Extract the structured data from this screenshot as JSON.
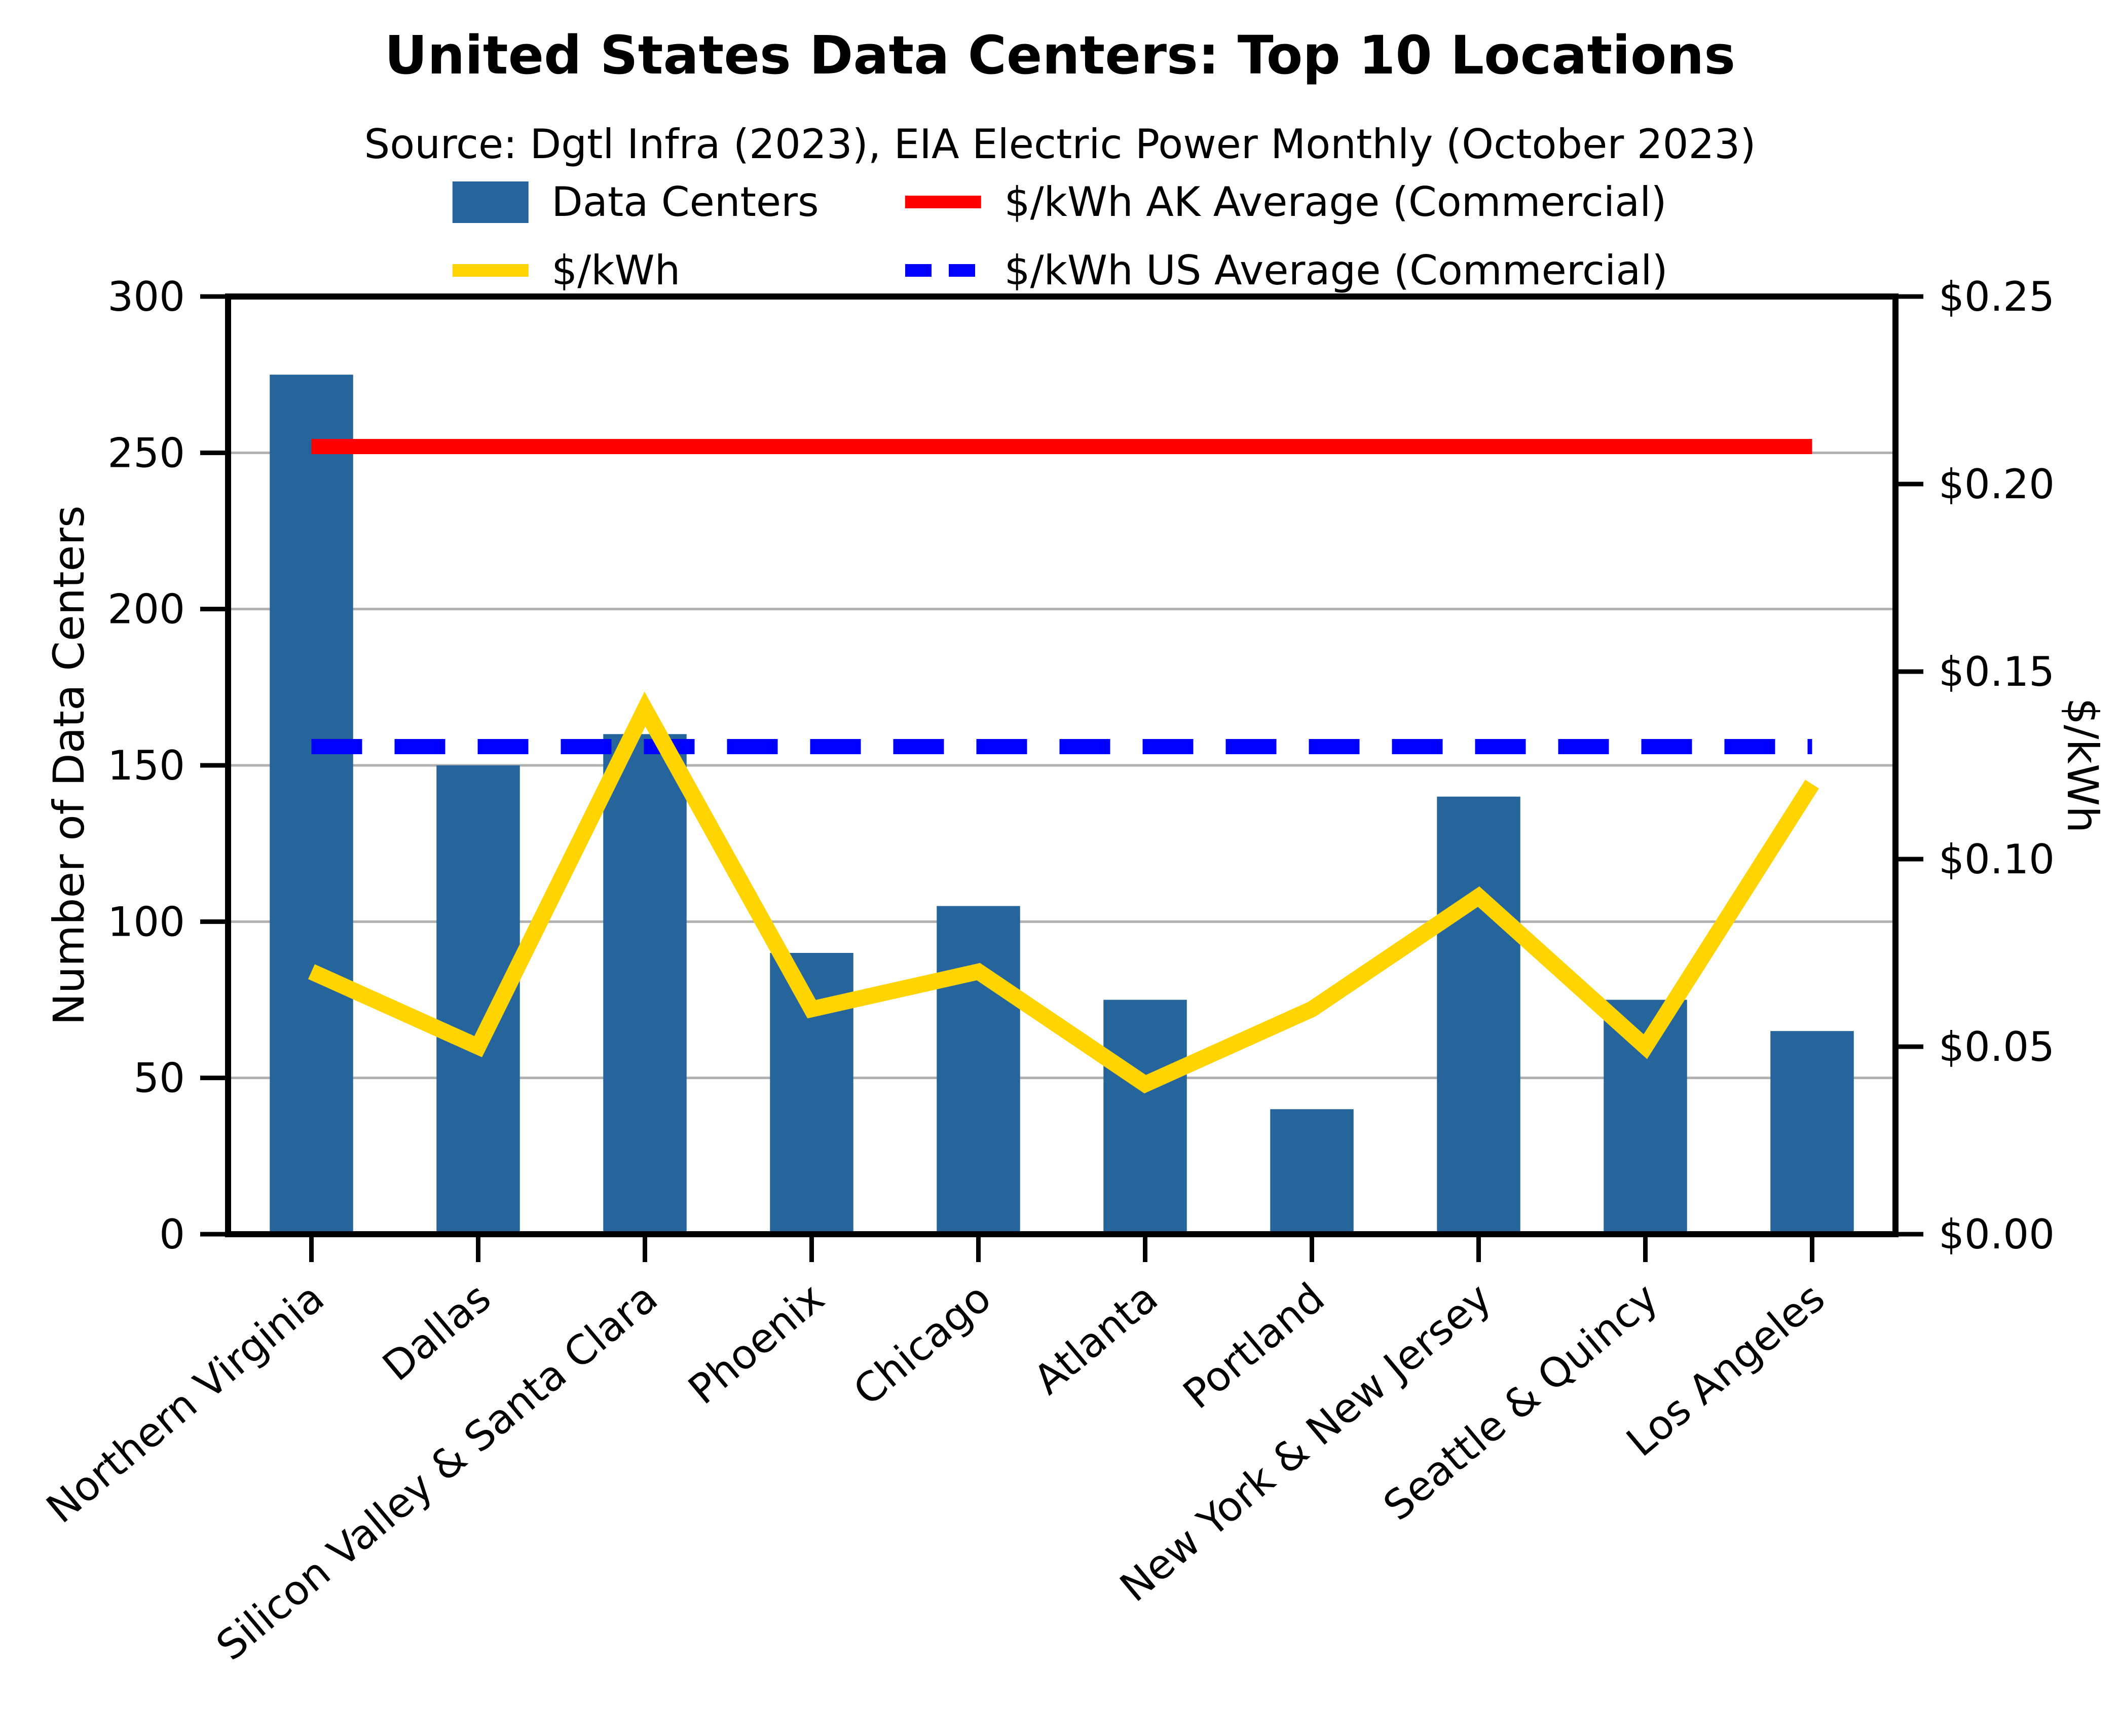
{
  "title": "United States Data Centers: Top 10 Locations",
  "subtitle": "Source: Dgtl Infra (2023), EIA Electric Power Monthly (October 2023)",
  "colors": {
    "bar": "#26659B",
    "kwh_line": "#FFD400",
    "ak_line": "#FF0000",
    "us_line": "#0000FF",
    "grid": "#B0B0B0",
    "axis": "#000000",
    "background": "#FFFFFF"
  },
  "legend": {
    "items": [
      {
        "label": "Data Centers",
        "swatch": "patch",
        "color": "#26659B",
        "dashed": false
      },
      {
        "label": "$/kWh AK Average (Commercial)",
        "swatch": "line",
        "color": "#FF0000",
        "dashed": false
      },
      {
        "label": "$/kWh",
        "swatch": "line",
        "color": "#FFD400",
        "dashed": false
      },
      {
        "label": "$/kWh US Average (Commercial)",
        "swatch": "line",
        "color": "#0000FF",
        "dashed": true
      }
    ]
  },
  "chart_data": {
    "type": "bar",
    "title": "United States Data Centers: Top 10 Locations",
    "subtitle": "Source: Dgtl Infra (2023), EIA Electric Power Monthly (October 2023)",
    "categories": [
      "Northern Virginia",
      "Dallas",
      "Silicon Valley & Santa Clara",
      "Phoenix",
      "Chicago",
      "Atlanta",
      "Portland",
      "New York & New Jersey",
      "Seattle & Quincy",
      "Los Angeles"
    ],
    "series": [
      {
        "name": "Data Centers",
        "type": "bar",
        "axis": "left",
        "color": "#26659B",
        "values": [
          275,
          150,
          160,
          90,
          105,
          75,
          40,
          140,
          75,
          65
        ]
      },
      {
        "name": "$/kWh",
        "type": "line",
        "axis": "right",
        "color": "#FFD400",
        "values": [
          0.07,
          0.05,
          0.14,
          0.06,
          0.07,
          0.04,
          0.06,
          0.09,
          0.05,
          0.12
        ]
      },
      {
        "name": "$/kWh AK Average (Commercial)",
        "type": "hline",
        "axis": "right",
        "color": "#FF0000",
        "dashed": false,
        "value": 0.21
      },
      {
        "name": "$/kWh US Average (Commercial)",
        "type": "hline",
        "axis": "right",
        "color": "#0000FF",
        "dashed": true,
        "value": 0.13
      }
    ],
    "left_axis": {
      "label": "Number of Data Centers",
      "range": [
        0,
        300
      ],
      "tick_values": [
        0,
        50,
        100,
        150,
        200,
        250,
        300
      ],
      "tick_labels": [
        "0",
        "50",
        "100",
        "150",
        "200",
        "250",
        "300"
      ]
    },
    "right_axis": {
      "label": "$/kWh",
      "range": [
        0,
        0.25
      ],
      "tick_values": [
        0,
        0.05,
        0.1,
        0.15,
        0.2,
        0.25
      ],
      "tick_labels": [
        "$0.00",
        "$0.05",
        "$0.10",
        "$0.15",
        "$0.20",
        "$0.25"
      ]
    },
    "grid": true,
    "legend_position": "top-center",
    "x_tick_label_rotation": -40
  }
}
